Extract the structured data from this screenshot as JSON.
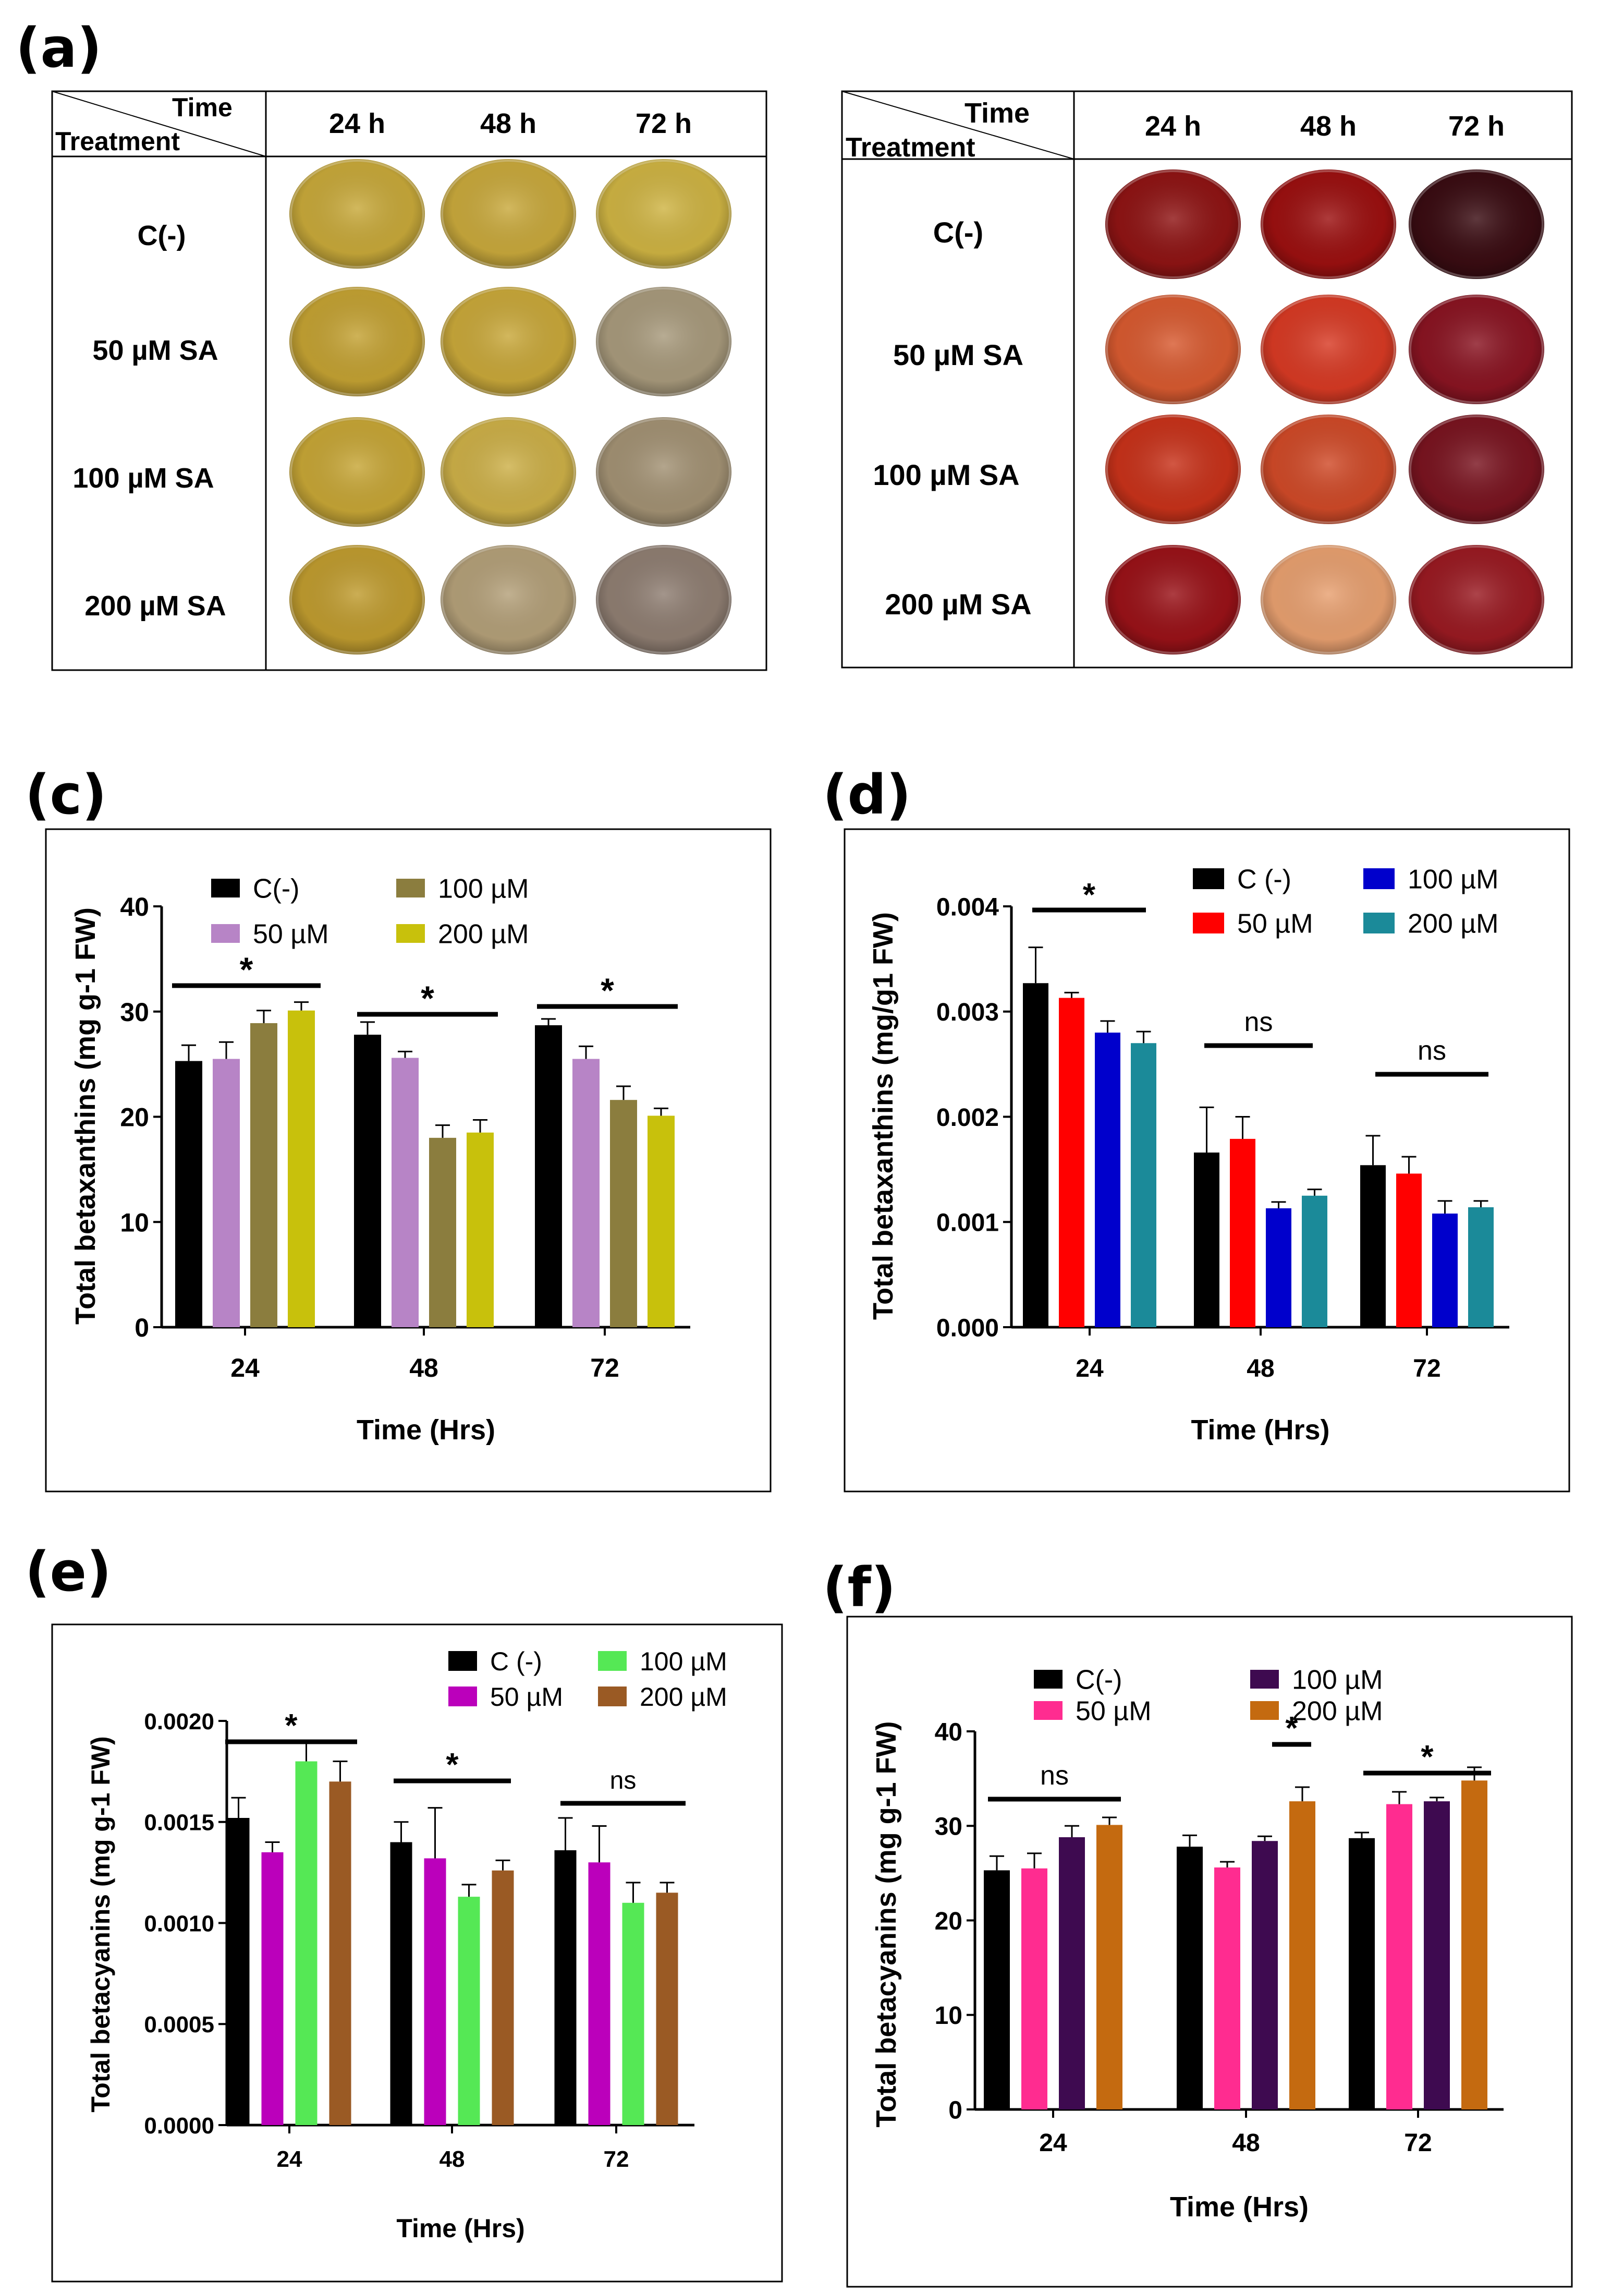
{
  "panel_labels": {
    "a": "(a)",
    "c": "(c)",
    "d": "(d)",
    "e": "(e)",
    "f": "(f)"
  },
  "tables": [
    {
      "header_time": "Time",
      "header_treatment": "Treatment",
      "columns": [
        "24 h",
        "48 h",
        "72 h"
      ],
      "rows": [
        "C(-)",
        "50 µM SA",
        "100 µM SA",
        "200 µM SA"
      ],
      "dish_colors": [
        [
          "#c8a93a",
          "#c9a93c",
          "#cfb443"
        ],
        [
          "#c4a233",
          "#c9a83a",
          "#a89a7c"
        ],
        [
          "#c7a636",
          "#cdb048",
          "#a39274"
        ],
        [
          "#c09c2f",
          "#b4a079",
          "#8f7e72"
        ]
      ]
    },
    {
      "header_time": "Time",
      "header_treatment": "Treatment",
      "columns": [
        "24 h",
        "48 h",
        "72 h"
      ],
      "rows": [
        "C(-)",
        "50 µM SA",
        "100 µM SA",
        "200 µM SA"
      ],
      "dish_colors": [
        [
          "#8f1414",
          "#9c1010",
          "#3a0c12"
        ],
        [
          "#d85a30",
          "#d83a24",
          "#8a1422"
        ],
        [
          "#c8321a",
          "#d04a28",
          "#7a1420"
        ],
        [
          "#9a1218",
          "#e8a070",
          "#9a1a22"
        ]
      ]
    }
  ],
  "chart_data": [
    {
      "id": "c",
      "type": "bar",
      "categories": [
        "24",
        "48",
        "72"
      ],
      "xlabel": "Time (Hrs)",
      "ylabel": "Total betaxanthins (mg g-1 FW)",
      "ylim": [
        0,
        40
      ],
      "yticks": [
        "0",
        "10",
        "20",
        "30",
        "40"
      ],
      "legend": [
        "C(-)",
        "50 µM",
        "100 µM",
        "200 µM"
      ],
      "colors": [
        "#000000",
        "#b784c6",
        "#8b7d3e",
        "#c8c10c"
      ],
      "series": [
        {
          "name": "C(-)",
          "values": [
            25.3,
            27.8,
            28.7
          ],
          "errors": [
            1.5,
            1.2,
            0.6
          ]
        },
        {
          "name": "50 µM",
          "values": [
            25.5,
            25.6,
            25.5
          ],
          "errors": [
            1.6,
            0.6,
            1.2
          ]
        },
        {
          "name": "100 µM",
          "values": [
            28.9,
            18.0,
            21.6
          ],
          "errors": [
            1.2,
            1.2,
            1.3
          ]
        },
        {
          "name": "200 µM",
          "values": [
            30.1,
            18.5,
            20.1
          ],
          "errors": [
            0.8,
            1.2,
            0.7
          ]
        }
      ],
      "significance": [
        "*",
        "*",
        "*"
      ]
    },
    {
      "id": "d",
      "type": "bar",
      "categories": [
        "24",
        "48",
        "72"
      ],
      "xlabel": "Time (Hrs)",
      "ylabel": "Total betaxanthins (mg/g1 FW)",
      "ylim": [
        0,
        0.004
      ],
      "yticks": [
        "0.000",
        "0.001",
        "0.002",
        "0.003",
        "0.004"
      ],
      "legend": [
        "C (-)",
        "50 µM",
        "100 µM",
        "200 µM"
      ],
      "colors": [
        "#000000",
        "#ff0000",
        "#0000cc",
        "#1b8a99"
      ],
      "series": [
        {
          "name": "C (-)",
          "values": [
            0.00327,
            0.00166,
            0.00154
          ],
          "errors": [
            0.00034,
            0.00043,
            0.00028
          ]
        },
        {
          "name": "50 µM",
          "values": [
            0.00313,
            0.00179,
            0.00146
          ],
          "errors": [
            5e-05,
            0.00021,
            0.00016
          ]
        },
        {
          "name": "100 µM",
          "values": [
            0.0028,
            0.00113,
            0.00108
          ],
          "errors": [
            0.00011,
            6e-05,
            0.00012
          ]
        },
        {
          "name": "200 µM",
          "values": [
            0.0027,
            0.00125,
            0.00114
          ],
          "errors": [
            0.00011,
            6e-05,
            6e-05
          ]
        }
      ],
      "significance": [
        "*",
        "ns",
        "ns"
      ]
    },
    {
      "id": "e",
      "type": "bar",
      "categories": [
        "24",
        "48",
        "72"
      ],
      "xlabel": "Time (Hrs)",
      "ylabel": "Total betacyanins (mg g-1 FW)",
      "ylim": [
        0,
        0.002
      ],
      "yticks": [
        "0.0000",
        "0.0005",
        "0.0010",
        "0.0015",
        "0.0020"
      ],
      "legend": [
        "C (-)",
        "50 µM",
        "100 µM",
        "200 µM"
      ],
      "colors": [
        "#000000",
        "#bb00bb",
        "#55e855",
        "#9a5a24"
      ],
      "series": [
        {
          "name": "C (-)",
          "values": [
            0.00152,
            0.0014,
            0.00136
          ],
          "errors": [
            0.0001,
            0.0001,
            0.00016
          ]
        },
        {
          "name": "50 µM",
          "values": [
            0.00135,
            0.00132,
            0.0013
          ],
          "errors": [
            5e-05,
            0.00025,
            0.00018
          ]
        },
        {
          "name": "100 µM",
          "values": [
            0.0018,
            0.00113,
            0.0011
          ],
          "errors": [
            0.0001,
            6e-05,
            0.0001
          ]
        },
        {
          "name": "200 µM",
          "values": [
            0.0017,
            0.00126,
            0.00115
          ],
          "errors": [
            0.0001,
            5e-05,
            5e-05
          ]
        }
      ],
      "significance": [
        "*",
        "*",
        "ns"
      ]
    },
    {
      "id": "f",
      "type": "bar",
      "categories": [
        "24",
        "48",
        "72"
      ],
      "xlabel": "Time (Hrs)",
      "ylabel": "Total betacyanins (mg g-1 FW)",
      "ylim": [
        0,
        40
      ],
      "yticks": [
        "0",
        "10",
        "20",
        "30",
        "40"
      ],
      "legend": [
        "C(-)",
        "50 µM",
        "100 µM",
        "200 µM"
      ],
      "colors": [
        "#000000",
        "#ff2c90",
        "#3e0a50",
        "#c46a10"
      ],
      "series": [
        {
          "name": "C(-)",
          "values": [
            25.3,
            27.8,
            28.7
          ],
          "errors": [
            1.5,
            1.2,
            0.6
          ]
        },
        {
          "name": "50 µM",
          "values": [
            25.5,
            25.6,
            32.3
          ],
          "errors": [
            1.6,
            0.6,
            1.3
          ]
        },
        {
          "name": "100 µM",
          "values": [
            28.8,
            28.4,
            32.6
          ],
          "errors": [
            1.2,
            0.5,
            0.4
          ]
        },
        {
          "name": "200 µM",
          "values": [
            30.1,
            32.6,
            34.8
          ],
          "errors": [
            0.8,
            1.5,
            1.4
          ]
        }
      ],
      "significance": [
        "ns",
        "*",
        "*"
      ]
    }
  ]
}
